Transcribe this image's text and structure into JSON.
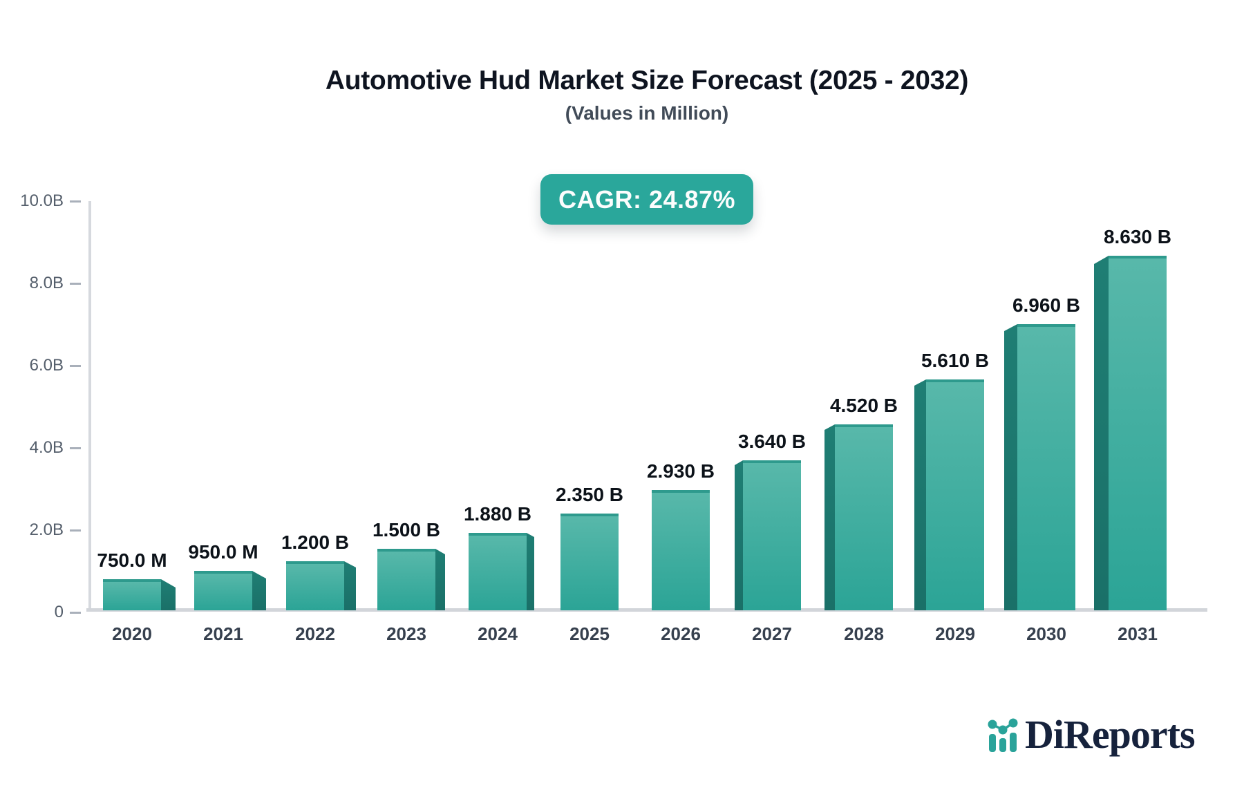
{
  "header": {
    "title": "Automotive Hud Market Size Forecast (2025 - 2032)",
    "subtitle": "(Values in Million)",
    "cagr_badge": "CAGR: 24.87%"
  },
  "chart_data": {
    "type": "bar",
    "title": "Automotive Hud Market Size Forecast (2025 - 2032)",
    "categories": [
      "2020",
      "2021",
      "2022",
      "2023",
      "2024",
      "2025",
      "2026",
      "2027",
      "2028",
      "2029",
      "2030",
      "2031"
    ],
    "values": [
      0.75,
      0.95,
      1.2,
      1.5,
      1.88,
      2.35,
      2.93,
      3.64,
      4.52,
      5.61,
      6.96,
      8.63
    ],
    "value_labels": [
      "750.0 M",
      "950.0 M",
      "1.200 B",
      "1.500 B",
      "1.880 B",
      "2.350 B",
      "2.930 B",
      "3.640 B",
      "4.520 B",
      "5.610 B",
      "6.960 B",
      "8.630 B"
    ],
    "xlabel": "",
    "ylabel": "",
    "ylim": [
      0,
      10
    ],
    "y_tick_values": [
      0,
      2,
      4,
      6,
      8,
      10
    ],
    "y_tick_labels": [
      "0",
      "2.0B",
      "4.0B",
      "6.0B",
      "8.0B",
      "10.0B"
    ],
    "grid": false,
    "legend": null,
    "bar_style": "3d-perspective-teal"
  },
  "colors": {
    "accent_teal": "#2aa79b",
    "bar_face_top": "#58b8aa",
    "bar_face_bottom": "#2ba496",
    "bar_side": "#1f7e74",
    "axis_line": "#d4d7dc",
    "logo_navy": "#16223c"
  },
  "footer": {
    "logo_text": "DiReports",
    "logo_icon": "bar-line-chart-icon"
  }
}
